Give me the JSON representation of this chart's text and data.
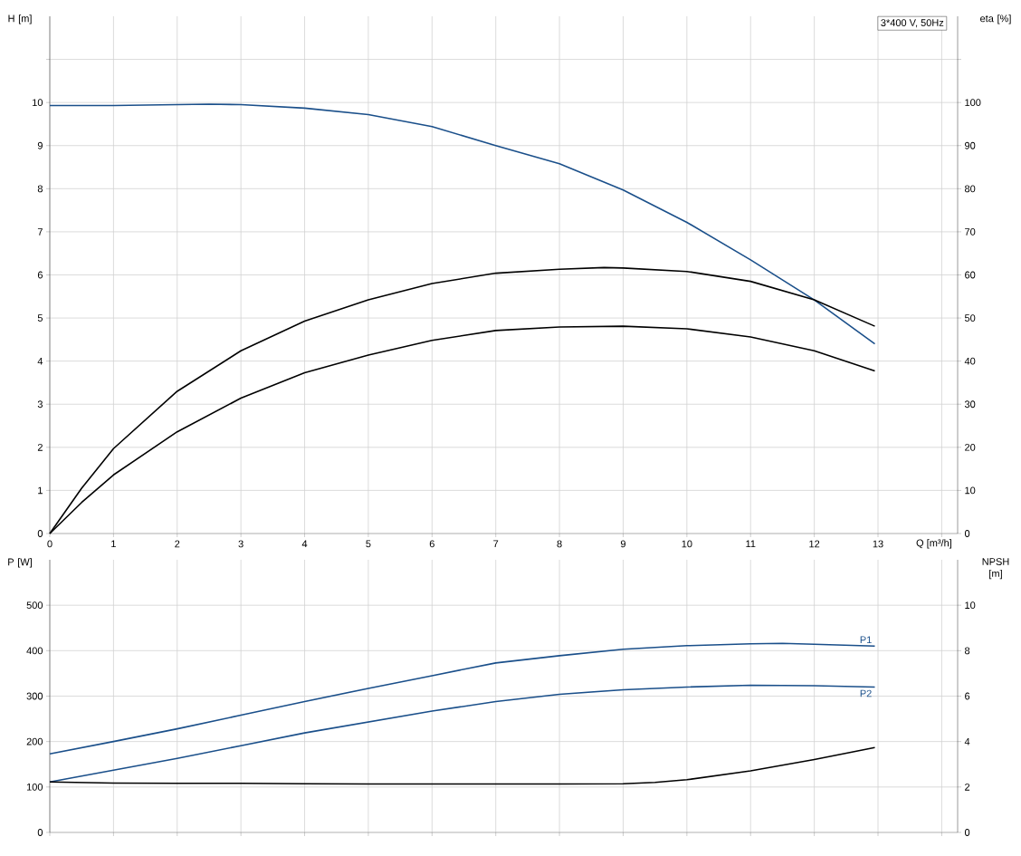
{
  "chart_data": [
    {
      "type": "line",
      "title": "3*400 V, 50Hz",
      "xlabel": "Q [m³/h]",
      "ylabel": "H [m]",
      "y2label": "eta [%]",
      "xlim": [
        0,
        14.25
      ],
      "ylim": [
        0,
        12
      ],
      "y2lim": [
        0,
        120
      ],
      "xticks": [
        0,
        1,
        2,
        3,
        4,
        5,
        6,
        7,
        8,
        9,
        10,
        11,
        12,
        13,
        {
          "value": 14,
          "label": null
        }
      ],
      "yticks": [
        0,
        1,
        2,
        3,
        4,
        5,
        6,
        7,
        8,
        9,
        10,
        {
          "value": 11,
          "label": null
        }
      ],
      "y2ticks": [
        0,
        10,
        20,
        30,
        40,
        50,
        60,
        70,
        80,
        90,
        100,
        {
          "value": 110,
          "label": null
        }
      ],
      "grid": true,
      "series": [
        {
          "color": "#1a4f8a",
          "x": [
            0,
            1,
            2,
            2.5,
            3,
            4,
            5,
            6,
            7,
            8,
            9,
            10,
            11,
            12,
            12.95
          ],
          "values": [
            9.93,
            9.93,
            9.95,
            9.96,
            9.95,
            9.87,
            9.72,
            9.44,
            9.0,
            8.58,
            7.97,
            7.22,
            6.35,
            5.42,
            4.4
          ]
        },
        {
          "color": "#000000",
          "axis": "y2",
          "x": [
            0,
            0.5,
            1,
            2,
            3,
            4,
            5,
            6,
            7,
            8,
            8.7,
            9,
            10,
            11,
            12,
            12.95
          ],
          "values": [
            0,
            10.5,
            19.7,
            33,
            42.4,
            49.3,
            54.2,
            58,
            60.4,
            61.3,
            61.7,
            61.6,
            60.8,
            58.5,
            54.2,
            48.1
          ]
        },
        {
          "color": "#000000",
          "axis": "y2",
          "x": [
            0,
            0.5,
            1,
            2,
            3,
            4,
            5,
            6,
            7,
            8,
            9,
            10,
            11,
            12,
            12.95
          ],
          "values": [
            0,
            7.2,
            13.6,
            23.6,
            31.4,
            37.3,
            41.4,
            44.8,
            47.1,
            47.9,
            48.1,
            47.5,
            45.6,
            42.4,
            37.7
          ]
        }
      ]
    },
    {
      "type": "line",
      "ylabel": "P [W]",
      "y2label": "NPSH [m]",
      "xlim": [
        0,
        14.25
      ],
      "ylim": [
        0,
        600
      ],
      "y2lim": [
        0,
        12
      ],
      "xticks": [
        0,
        1,
        2,
        3,
        4,
        5,
        6,
        7,
        8,
        9,
        10,
        11,
        12,
        13,
        14
      ],
      "yticks": [
        0,
        100,
        200,
        300,
        400,
        500
      ],
      "y2ticks": [
        0,
        2,
        4,
        6,
        8,
        10
      ],
      "grid": true,
      "tick_labels": "y",
      "series": [
        {
          "name": "P1",
          "color": "#1a4f8a",
          "x": [
            0,
            1,
            2,
            3,
            4,
            5,
            6,
            7,
            8,
            9,
            10,
            11,
            11.5,
            12,
            12.95
          ],
          "values": [
            173,
            200,
            228,
            258,
            288,
            317,
            345,
            373,
            389,
            403,
            411,
            415,
            416,
            414,
            410
          ]
        },
        {
          "name": "P2",
          "color": "#1a4f8a",
          "x": [
            0,
            1,
            2,
            3,
            4,
            5,
            6,
            7,
            8,
            9,
            10,
            11,
            12,
            12.95
          ],
          "values": [
            111,
            137,
            163,
            191,
            219,
            243,
            267,
            288,
            304,
            314,
            320,
            324,
            323,
            320
          ]
        },
        {
          "color": "#000000",
          "axis": "y2",
          "x": [
            0,
            1,
            2,
            3,
            4,
            5,
            6,
            7,
            8,
            9,
            9.5,
            10,
            11,
            12,
            12.95
          ],
          "values": [
            2.22,
            2.17,
            2.16,
            2.16,
            2.14,
            2.13,
            2.13,
            2.13,
            2.13,
            2.14,
            2.2,
            2.32,
            2.71,
            3.21,
            3.74
          ]
        }
      ]
    }
  ]
}
